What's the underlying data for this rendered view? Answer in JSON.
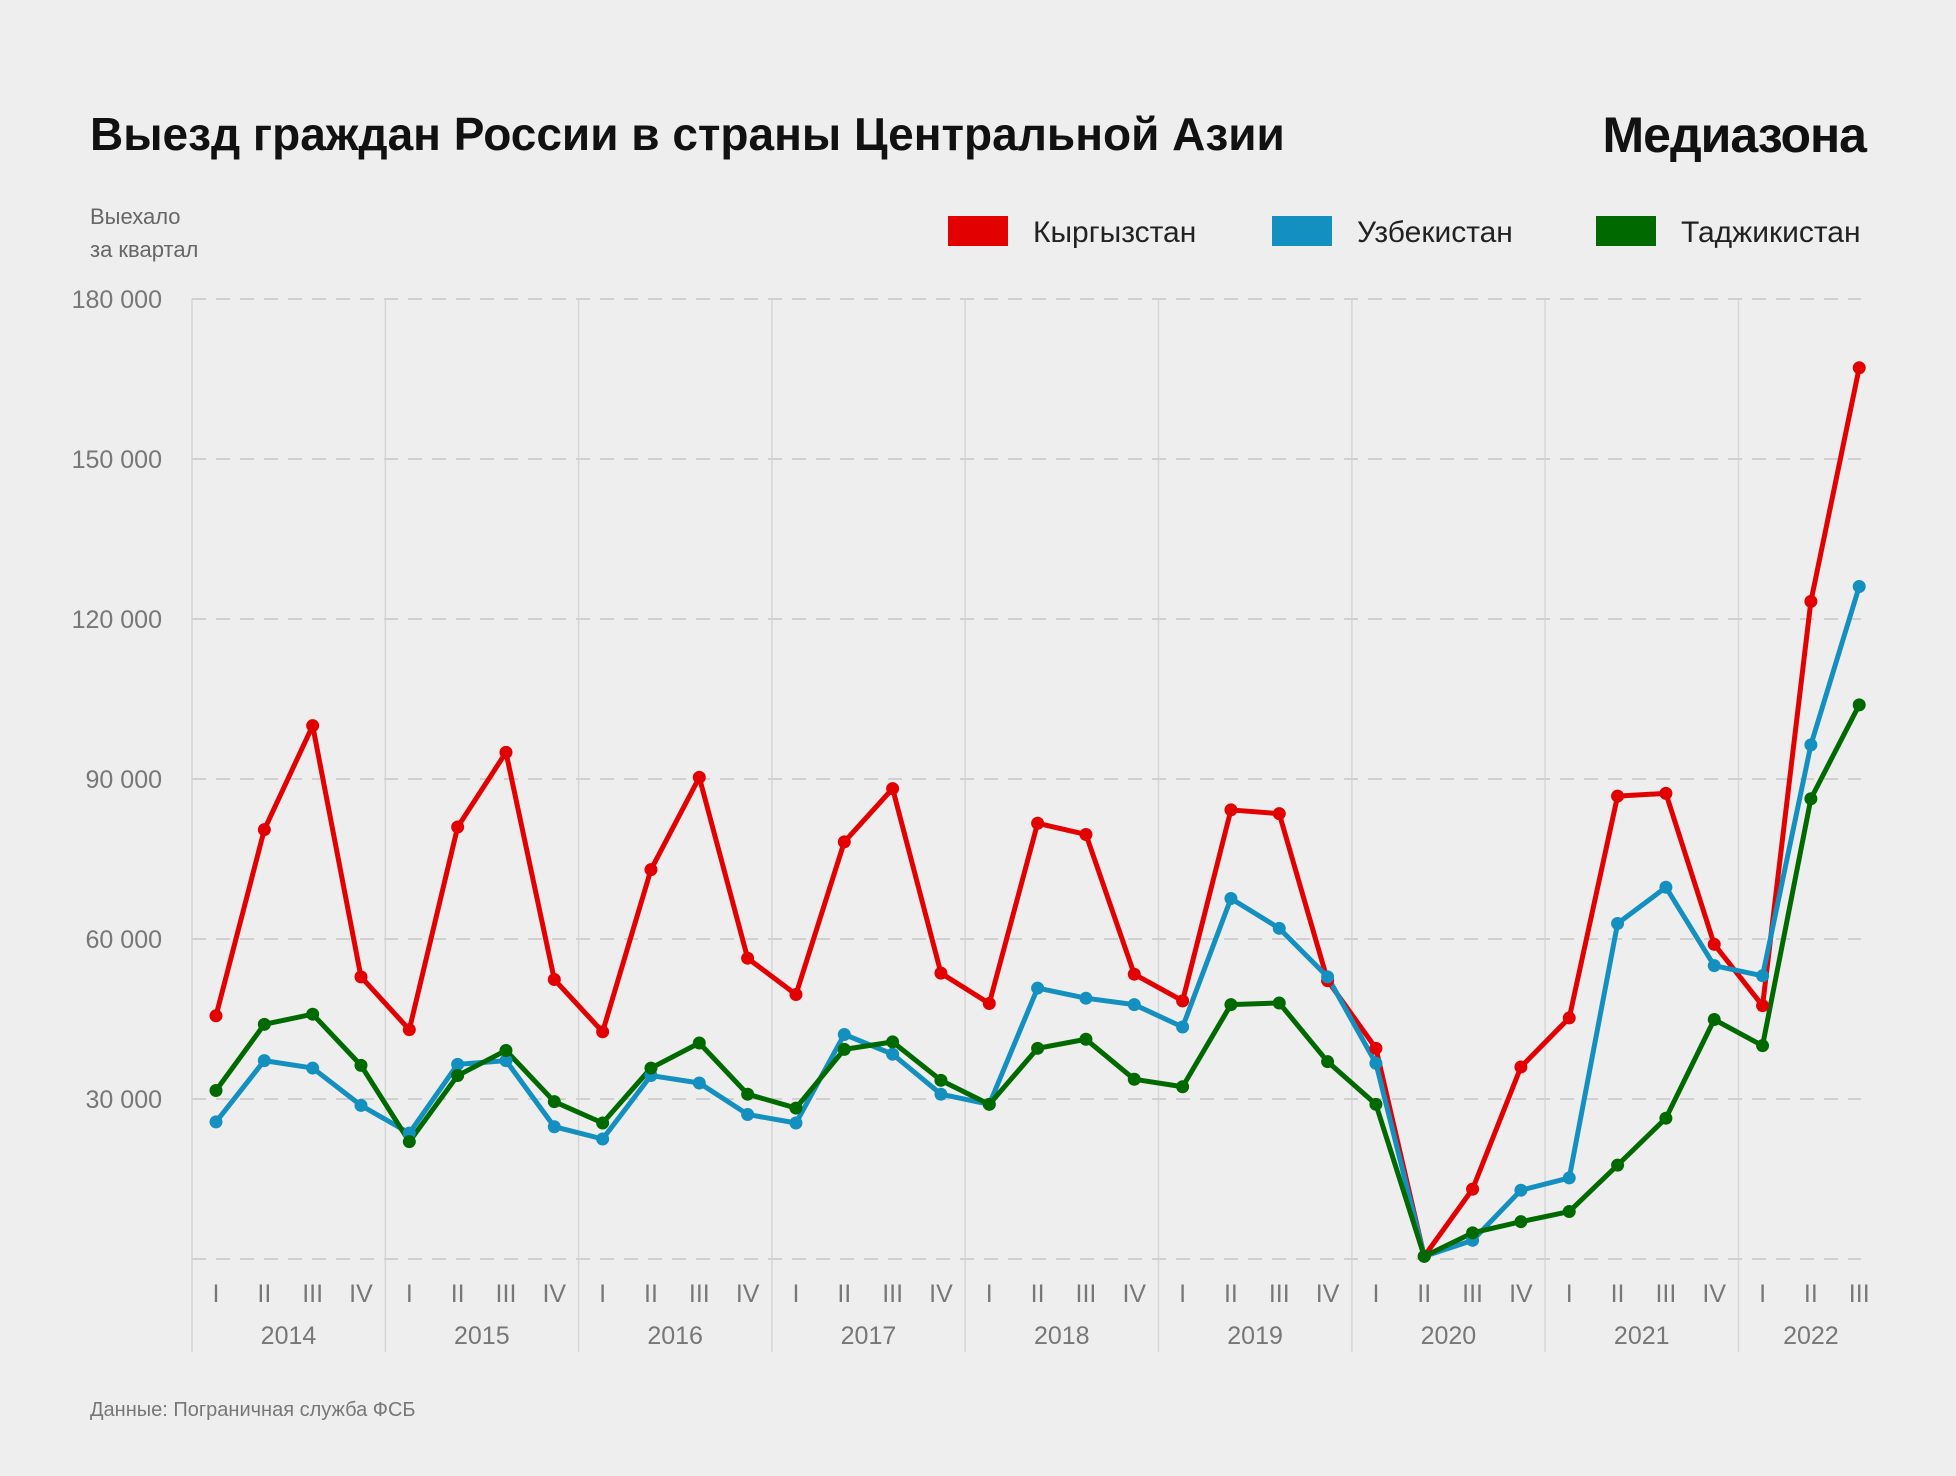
{
  "chart_data": {
    "type": "line",
    "title": "Выезд граждан России в страны Центральной Азии",
    "brand": "Медиазона",
    "ylabel": [
      "Выехало",
      "за квартал"
    ],
    "ylim": [
      0,
      180000
    ],
    "yticks": [
      30000,
      60000,
      90000,
      120000,
      150000,
      180000
    ],
    "ytick_labels": [
      "30 000",
      "60 000",
      "90 000",
      "120 000",
      "150 000",
      "180 000"
    ],
    "grid": true,
    "legend_position": "top-right",
    "years": [
      "2014",
      "2015",
      "2016",
      "2017",
      "2018",
      "2019",
      "2020",
      "2021",
      "2022"
    ],
    "quarters": [
      "I",
      "II",
      "III",
      "IV",
      "I",
      "II",
      "III",
      "IV",
      "I",
      "II",
      "III",
      "IV",
      "I",
      "II",
      "III",
      "IV",
      "I",
      "II",
      "III",
      "IV",
      "I",
      "II",
      "III",
      "IV",
      "I",
      "II",
      "III",
      "IV",
      "I",
      "II",
      "III",
      "IV",
      "I",
      "II",
      "III"
    ],
    "series": [
      {
        "name": "Кыргызстан",
        "color": "#e30000",
        "values": [
          45600,
          80500,
          100000,
          52900,
          43000,
          81000,
          95000,
          52400,
          42600,
          73000,
          90300,
          56400,
          49600,
          78200,
          88200,
          53600,
          47900,
          81700,
          79600,
          53400,
          48400,
          84200,
          83500,
          52200,
          39500,
          500,
          13100,
          36000,
          45200,
          86800,
          87300,
          59000,
          47500,
          123300,
          167100
        ]
      },
      {
        "name": "Узбекистан",
        "color": "#1390c0",
        "values": [
          25700,
          37200,
          35800,
          28800,
          23600,
          36500,
          37200,
          24800,
          22500,
          34400,
          33000,
          27100,
          25500,
          42100,
          38400,
          30900,
          29000,
          50800,
          48900,
          47700,
          43500,
          67600,
          62000,
          52900,
          36700,
          500,
          3500,
          12900,
          15200,
          62900,
          69700,
          55000,
          53100,
          96400,
          126100
        ]
      },
      {
        "name": "Таджикистан",
        "color": "#006a00",
        "values": [
          31600,
          44000,
          45900,
          36300,
          22000,
          34400,
          39100,
          29500,
          25500,
          35800,
          40500,
          30900,
          28300,
          39300,
          40700,
          33500,
          29000,
          39500,
          41200,
          33700,
          32300,
          47700,
          48000,
          37000,
          29000,
          500,
          4900,
          7000,
          8900,
          17600,
          26400,
          44900,
          40000,
          86300,
          103900
        ]
      }
    ],
    "source": "Данные: Пограничная служба ФСБ"
  }
}
